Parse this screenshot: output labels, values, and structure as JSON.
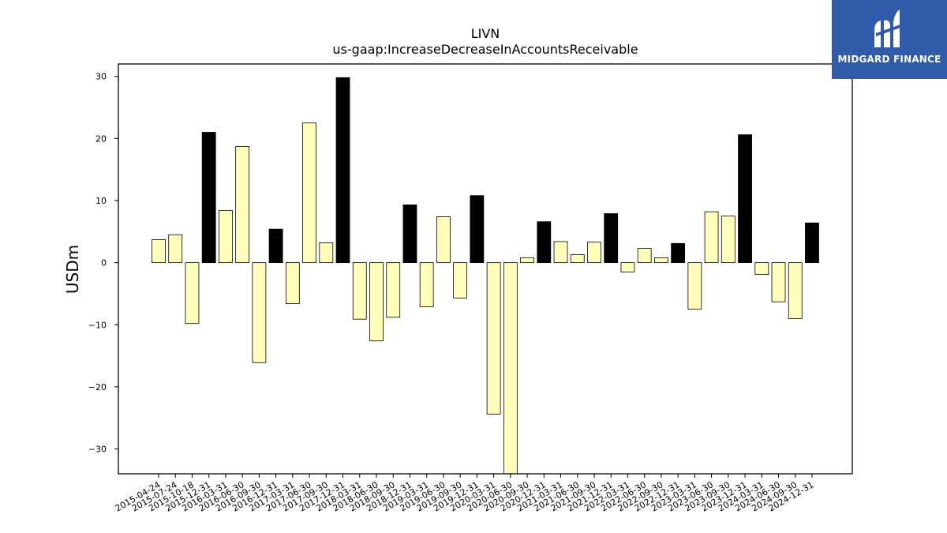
{
  "chart_data": {
    "type": "bar",
    "title": "LIVN",
    "subtitle": "us-gaap:IncreaseDecreaseInAccountsReceivable",
    "ylabel": "USDm",
    "xlabel": "",
    "ylim": [
      -34,
      32
    ],
    "yticks": [
      30,
      20,
      10,
      0,
      -10,
      -20,
      -30
    ],
    "ytick_labels": [
      "30",
      "20",
      "10",
      "0",
      "−10",
      "−20",
      "−30"
    ],
    "grid": false,
    "colors": {
      "quarter": "#ffffbb",
      "year_end": "#000000",
      "edge": "#000000"
    },
    "categories": [
      "2015-04-24",
      "2015-07-24",
      "2015-10-18",
      "2015-12-31",
      "2016-03-31",
      "2016-06-30",
      "2016-09-30",
      "2016-12-31",
      "2017-03-31",
      "2017-06-30",
      "2017-09-30",
      "2017-12-31",
      "2018-03-31",
      "2018-06-30",
      "2018-09-30",
      "2018-12-31",
      "2019-03-31",
      "2019-06-30",
      "2019-09-30",
      "2019-12-31",
      "2020-03-31",
      "2020-06-30",
      "2020-09-30",
      "2020-12-31",
      "2021-03-31",
      "2021-06-30",
      "2021-09-30",
      "2021-12-31",
      "2022-03-31",
      "2022-06-30",
      "2022-09-30",
      "2022-12-31",
      "2023-03-31",
      "2023-06-30",
      "2023-09-30",
      "2023-12-31",
      "2024-03-31",
      "2024-06-30",
      "2024-09-30",
      "2024-12-31"
    ],
    "values": [
      3.7,
      4.5,
      -9.8,
      21.0,
      8.4,
      18.7,
      -16.1,
      5.4,
      -6.6,
      22.5,
      3.2,
      29.8,
      -9.1,
      -12.6,
      -8.8,
      9.3,
      -7.1,
      7.4,
      -5.7,
      10.8,
      -24.4,
      -34.0,
      0.8,
      6.6,
      3.4,
      1.3,
      3.3,
      7.9,
      -1.5,
      2.3,
      0.8,
      3.1,
      -7.5,
      8.2,
      7.5,
      20.6,
      -1.9,
      -6.3,
      -9.0,
      6.4
    ],
    "highlight": [
      false,
      false,
      false,
      true,
      false,
      false,
      false,
      true,
      false,
      false,
      false,
      true,
      false,
      false,
      false,
      true,
      false,
      false,
      false,
      true,
      false,
      false,
      false,
      true,
      false,
      false,
      false,
      true,
      false,
      false,
      false,
      true,
      false,
      false,
      false,
      true,
      false,
      false,
      false,
      true
    ]
  },
  "logo": {
    "text": "MIDGARD FINANCE",
    "icon": "midgard-logo-icon",
    "background": "#2f5ba8"
  }
}
